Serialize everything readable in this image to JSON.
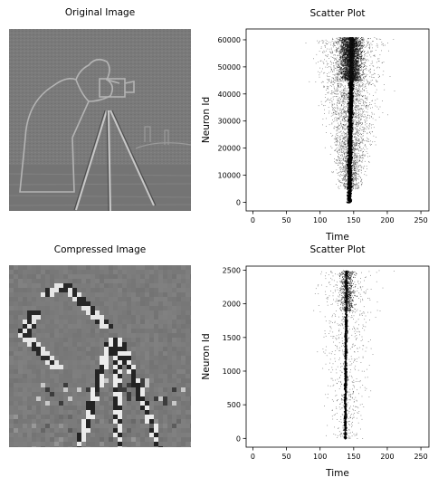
{
  "panels": {
    "top_left_title": "Original Image",
    "bottom_left_title": "Compressed Image"
  },
  "chart_data": [
    {
      "type": "scatter",
      "title": "Scatter Plot",
      "xlabel": "Time",
      "ylabel": "Neuron Id",
      "xlim": [
        -10,
        262
      ],
      "ylim": [
        -3200,
        64000
      ],
      "xticks": [
        0,
        50,
        100,
        150,
        200,
        250
      ],
      "yticks": [
        0,
        10000,
        20000,
        30000,
        40000,
        50000,
        60000
      ],
      "grid": false,
      "legend": "none",
      "description_points": {
        "dense_column_time": [
          137,
          148
        ],
        "dense_column_ids": [
          0,
          61000
        ],
        "scatter_time_range": [
          40,
          245
        ],
        "scatter_id_range": [
          5000,
          61000
        ],
        "dense_top_band_ids": [
          45000,
          61000
        ]
      }
    },
    {
      "type": "scatter",
      "title": "Scatter Plot",
      "xlabel": "Time",
      "ylabel": "Neuron Id",
      "xlim": [
        -10,
        262
      ],
      "ylim": [
        -130,
        2560
      ],
      "xticks": [
        0,
        50,
        100,
        150,
        200,
        250
      ],
      "yticks": [
        0,
        500,
        1000,
        1500,
        2000,
        2500
      ],
      "grid": false,
      "legend": "none",
      "description_points": {
        "dense_column_time": [
          133,
          140
        ],
        "dense_column_ids": [
          0,
          2500
        ],
        "scatter_time_range": [
          25,
          250
        ],
        "scatter_id_range": [
          0,
          2500
        ],
        "dense_top_band_ids": [
          1900,
          2500
        ]
      }
    }
  ]
}
